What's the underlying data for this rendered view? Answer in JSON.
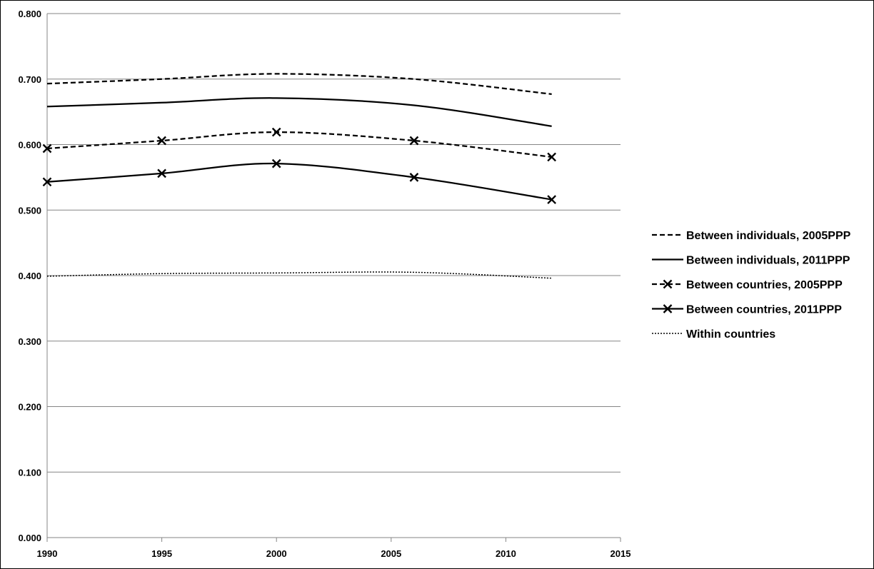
{
  "chart_data": {
    "type": "line",
    "title": "",
    "xlabel": "",
    "ylabel": "",
    "xlim": [
      1990,
      2015
    ],
    "ylim": [
      0,
      0.8
    ],
    "x_ticks": [
      "1990",
      "1995",
      "2000",
      "2005",
      "2010",
      "2015"
    ],
    "y_ticks": [
      "0.000",
      "0.100",
      "0.200",
      "0.300",
      "0.400",
      "0.500",
      "0.600",
      "0.700",
      "0.800"
    ],
    "grid": "horizontal",
    "legend_position": "right",
    "series": [
      {
        "name": "Between individuals, 2005PPP",
        "style": "dashed",
        "markers": false,
        "points": [
          [
            1990,
            0.693
          ],
          [
            1995,
            0.7
          ],
          [
            2000,
            0.708
          ],
          [
            2006,
            0.7
          ],
          [
            2012,
            0.677
          ]
        ]
      },
      {
        "name": "Between individuals, 2011PPP",
        "style": "solid",
        "markers": false,
        "points": [
          [
            1990,
            0.658
          ],
          [
            1995,
            0.664
          ],
          [
            2000,
            0.671
          ],
          [
            2006,
            0.66
          ],
          [
            2012,
            0.628
          ]
        ]
      },
      {
        "name": "Between countries, 2005PPP",
        "style": "dashed",
        "markers": true,
        "points": [
          [
            1990,
            0.594
          ],
          [
            1995,
            0.606
          ],
          [
            2000,
            0.619
          ],
          [
            2006,
            0.606
          ],
          [
            2012,
            0.581
          ]
        ]
      },
      {
        "name": "Between countries, 2011PPP",
        "style": "solid",
        "markers": true,
        "points": [
          [
            1990,
            0.543
          ],
          [
            1995,
            0.556
          ],
          [
            2000,
            0.571
          ],
          [
            2006,
            0.55
          ],
          [
            2012,
            0.516
          ]
        ]
      },
      {
        "name": "Within countries",
        "style": "dotted",
        "markers": false,
        "points": [
          [
            1990,
            0.399
          ],
          [
            1995,
            0.403
          ],
          [
            2000,
            0.404
          ],
          [
            2006,
            0.405
          ],
          [
            2012,
            0.396
          ]
        ]
      }
    ],
    "line_color": "#000000",
    "grid_color": "#868686"
  }
}
